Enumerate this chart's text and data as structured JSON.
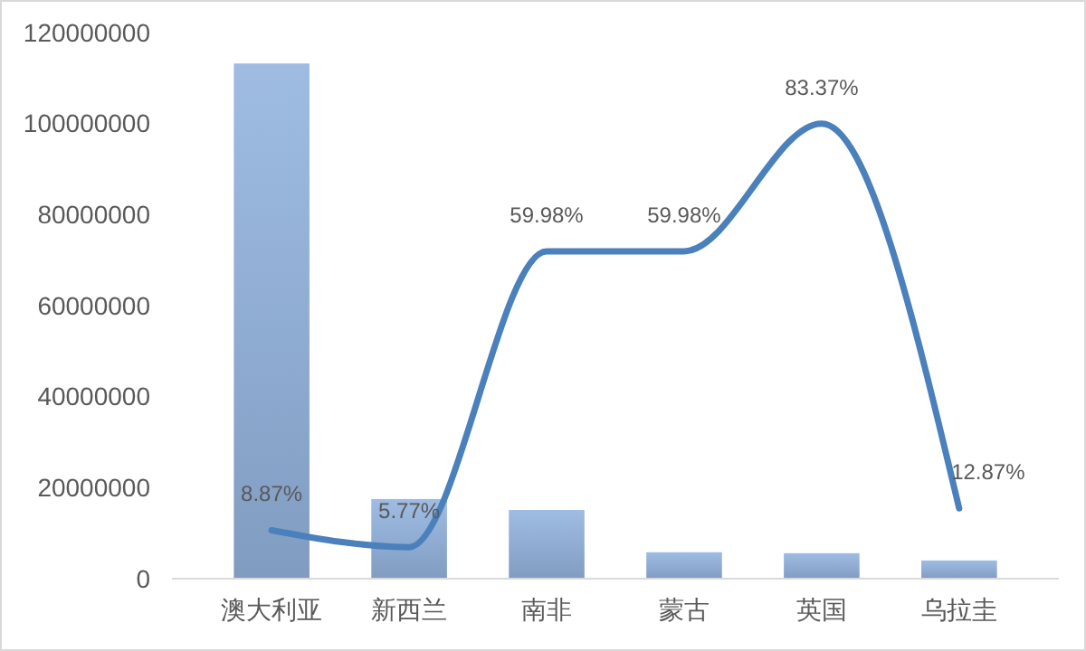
{
  "chart_data": {
    "type": "bar",
    "categories": [
      "澳大利亚",
      "新西兰",
      "南非",
      "蒙古",
      "英国",
      "乌拉圭"
    ],
    "series": [
      {
        "color": "#94b4df",
        "values": [
          113200000,
          17500000,
          15100000,
          5800000,
          5600000,
          4000000
        ]
      },
      {
        "type": "line",
        "axis": "y2",
        "color": "#4a80bb",
        "values": [
          8.87,
          5.77,
          59.98,
          59.98,
          83.37,
          12.87
        ],
        "value_labels": [
          "8.87%",
          "5.77%",
          "59.98%",
          "59.98%",
          "83.37%",
          "12.87%"
        ]
      }
    ],
    "ylim": [
      0,
      120000000
    ],
    "yticks": [
      0,
      20000000,
      40000000,
      60000000,
      80000000,
      100000000,
      120000000
    ],
    "tick_labels": "y",
    "grid": false,
    "marker": "none",
    "line_style": "solid"
  }
}
